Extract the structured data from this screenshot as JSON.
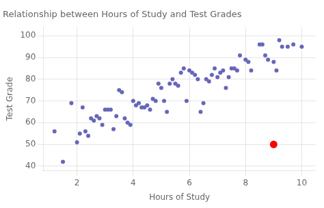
{
  "chart_data": {
    "type": "scatter",
    "title": "Relationship between Hours of Study and Test Grades",
    "xlabel": "Hours of Study",
    "ylabel": "Test Grade",
    "xlim": [
      0.8,
      10.5
    ],
    "ylim": [
      38,
      104
    ],
    "xticks": [
      2,
      4,
      6,
      8,
      10
    ],
    "yticks": [
      40,
      50,
      60,
      70,
      80,
      90,
      100
    ],
    "grid": true,
    "series": [
      {
        "color": "#6666bb",
        "x": [
          1.2,
          1.5,
          1.8,
          2.0,
          2.1,
          2.2,
          2.3,
          2.4,
          2.5,
          2.6,
          2.7,
          2.8,
          2.9,
          3.0,
          3.1,
          3.2,
          3.3,
          3.4,
          3.5,
          3.6,
          3.7,
          3.8,
          3.9,
          4.0,
          4.1,
          4.2,
          4.3,
          4.4,
          4.5,
          4.6,
          4.7,
          4.8,
          4.9,
          5.0,
          5.1,
          5.2,
          5.3,
          5.4,
          5.5,
          5.6,
          5.7,
          5.8,
          5.9,
          6.0,
          6.1,
          6.2,
          6.3,
          6.4,
          6.5,
          6.6,
          6.7,
          6.8,
          6.9,
          7.0,
          7.1,
          7.2,
          7.3,
          7.4,
          7.5,
          7.6,
          7.7,
          7.8,
          8.0,
          8.1,
          8.2,
          8.5,
          8.6,
          8.7,
          8.8,
          9.0,
          9.1,
          9.2,
          9.3,
          9.5,
          9.7,
          10.0
        ],
        "values": [
          56,
          42,
          69,
          51,
          55,
          67,
          56,
          54,
          62,
          61,
          63,
          62,
          59,
          66,
          66,
          66,
          57,
          63,
          75,
          74,
          62,
          60,
          59,
          70,
          68,
          69,
          67,
          67,
          68,
          66,
          71,
          70,
          78,
          76,
          70,
          65,
          78,
          80,
          78,
          77,
          83,
          85,
          70,
          84,
          83,
          82,
          80,
          65,
          69,
          80,
          79,
          82,
          85,
          81,
          83,
          84,
          76,
          81,
          85,
          85,
          84,
          91,
          89,
          88,
          84,
          96,
          96,
          91,
          89,
          88,
          84,
          98,
          95,
          95,
          96,
          95
        ]
      },
      {
        "color": "#ff0000",
        "x": [
          9.0
        ],
        "values": [
          50
        ]
      }
    ]
  }
}
